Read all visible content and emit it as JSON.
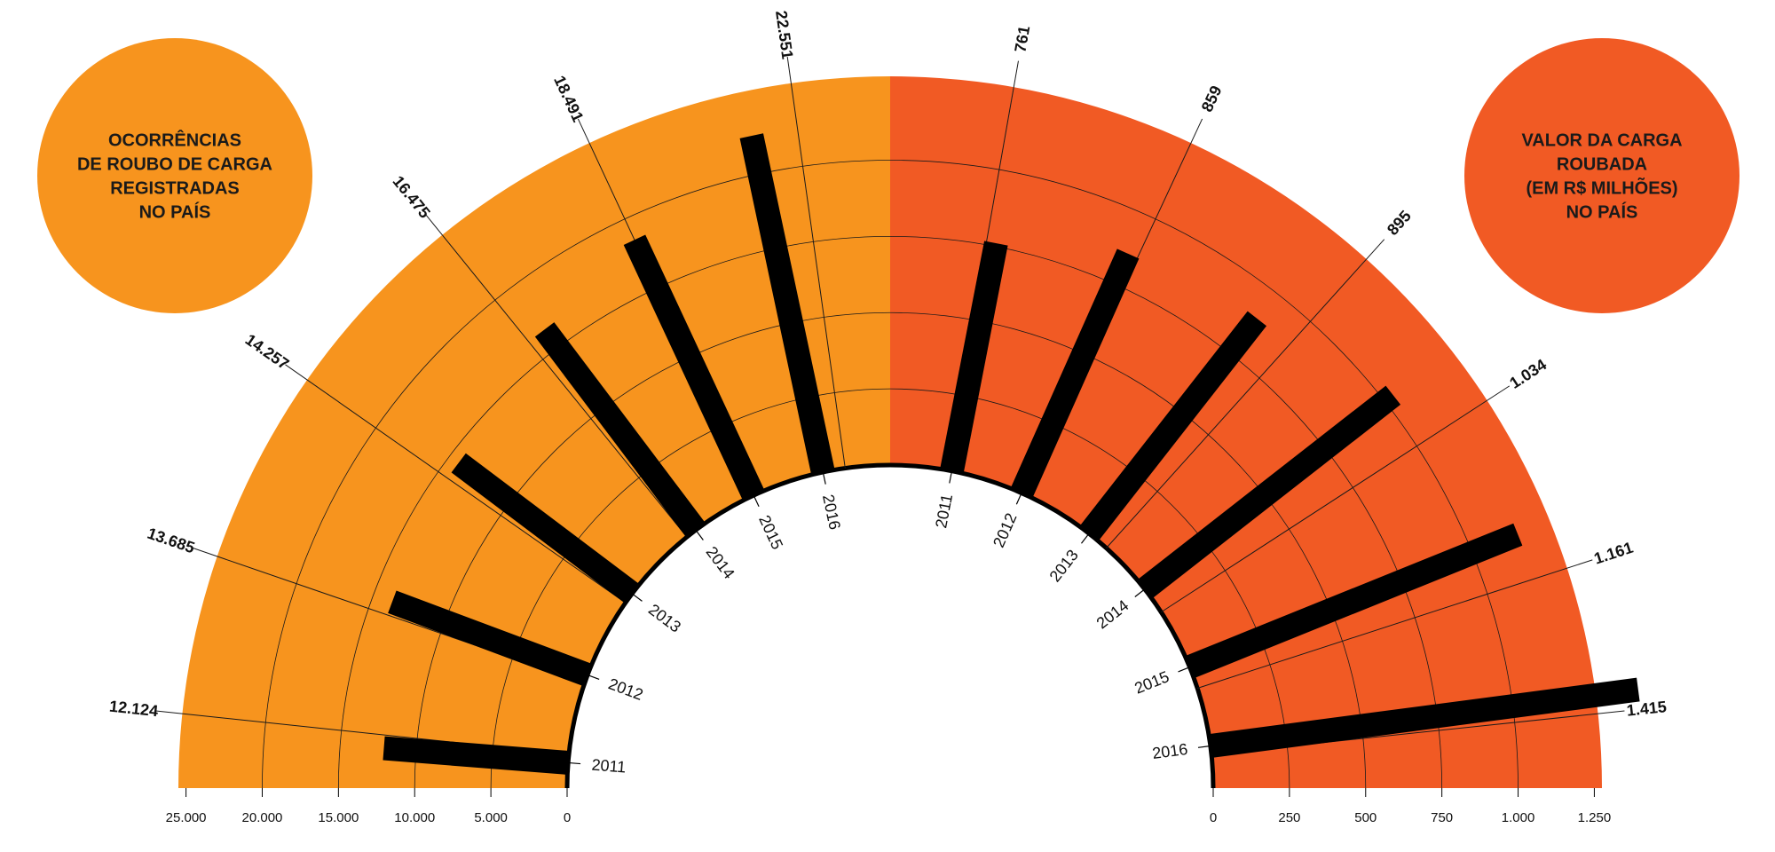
{
  "colors": {
    "left_fill": "#F7941E",
    "right_fill": "#F15A24",
    "bar": "#000000",
    "line": "#1a1a1a"
  },
  "chart_data": [
    {
      "type": "bar",
      "layout": "radial-half-left",
      "title_lines": [
        "OCORRÊNCIAS",
        "DE ROUBO DE CARGA",
        "REGISTRADAS",
        "NO PAÍS"
      ],
      "categories": [
        "2011",
        "2012",
        "2013",
        "2014",
        "2015",
        "2016"
      ],
      "values": [
        12124,
        13685,
        14257,
        16475,
        18491,
        22551
      ],
      "value_labels": [
        "12.124",
        "13.685",
        "14.257",
        "16.475",
        "18.491",
        "22.551"
      ],
      "axis_range": [
        0,
        25000
      ],
      "axis_ticks": [
        0,
        5000,
        10000,
        15000,
        20000,
        25000
      ],
      "axis_tick_labels": [
        "0",
        "5.000",
        "10.000",
        "15.000",
        "20.000",
        "25.000"
      ]
    },
    {
      "type": "bar",
      "layout": "radial-half-right",
      "title_lines": [
        "VALOR DA CARGA",
        "ROUBADA",
        "(EM R$ MILHÕES)",
        "NO PAÍS"
      ],
      "categories": [
        "2011",
        "2012",
        "2013",
        "2014",
        "2015",
        "2016"
      ],
      "values": [
        761,
        859,
        895,
        1034,
        1161,
        1415
      ],
      "value_labels": [
        "761",
        "859",
        "895",
        "1.034",
        "1.161",
        "1.415"
      ],
      "axis_range": [
        0,
        1250
      ],
      "axis_ticks": [
        0,
        250,
        500,
        750,
        1000,
        1250
      ],
      "axis_tick_labels": [
        "0",
        "250",
        "500",
        "750",
        "1.000",
        "1.250"
      ]
    }
  ]
}
